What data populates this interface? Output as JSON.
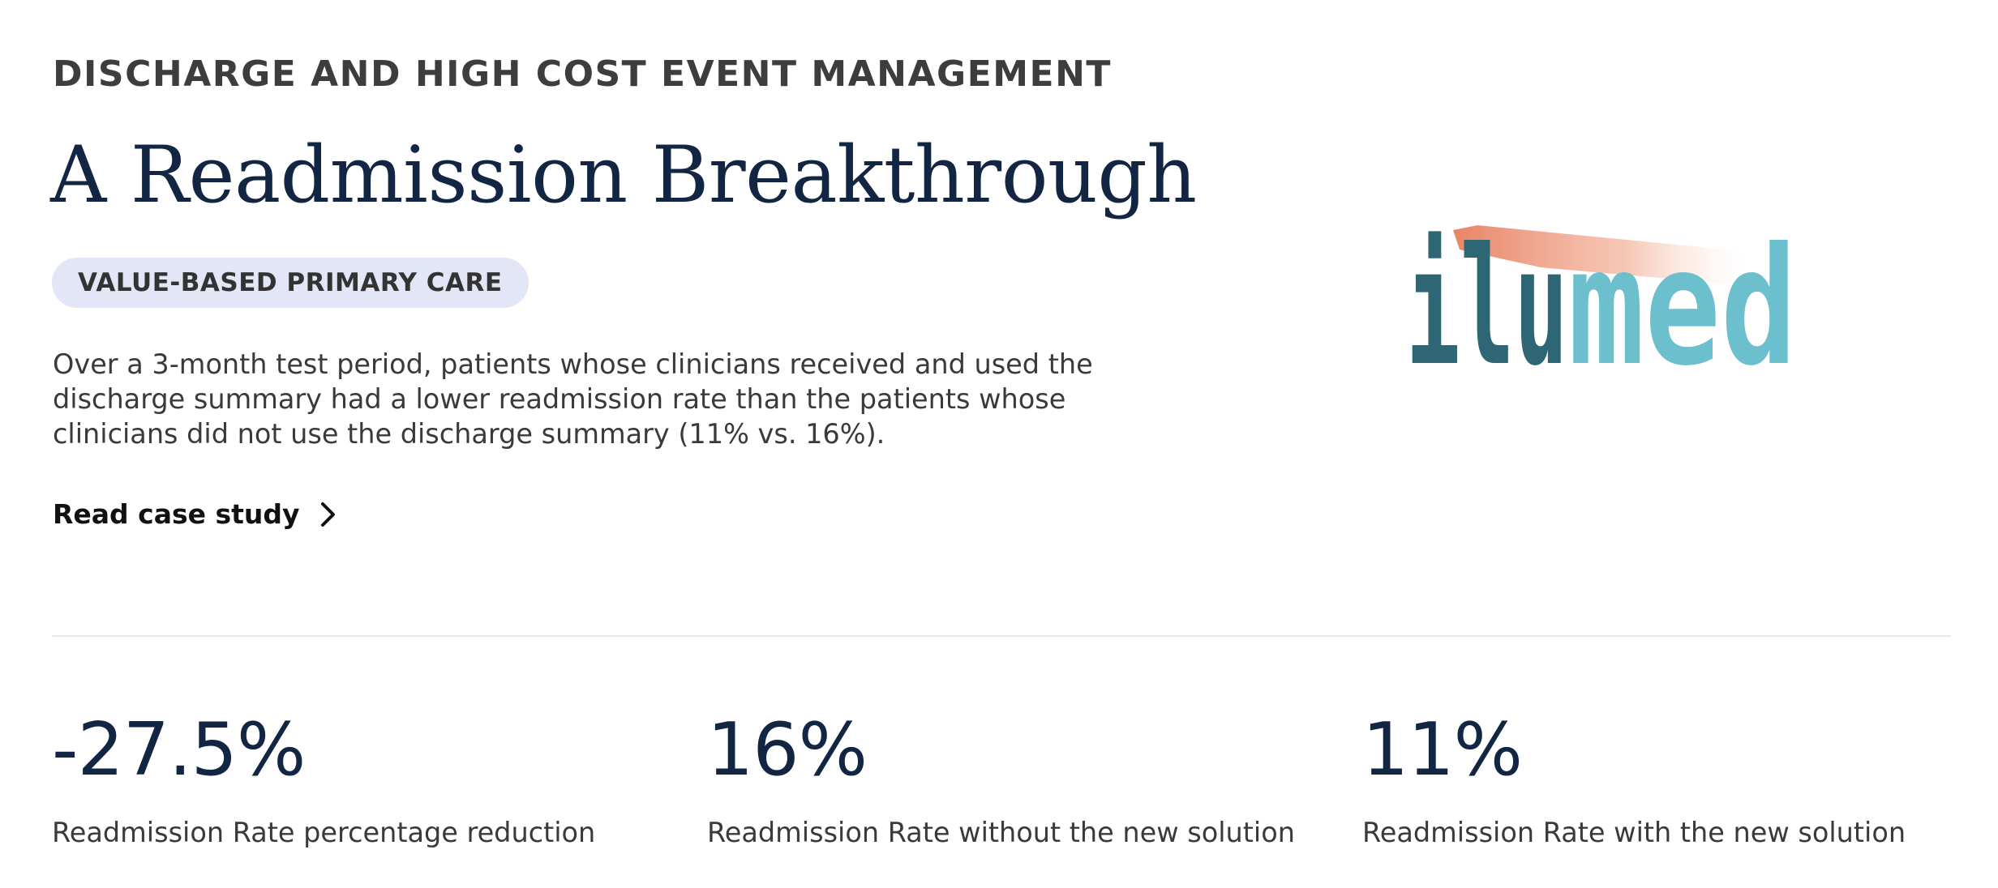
{
  "header": {
    "eyebrow": "DISCHARGE AND HIGH COST EVENT MANAGEMENT",
    "title": "A Readmission Breakthrough",
    "tag": "VALUE-BASED PRIMARY CARE"
  },
  "description": "Over a 3-month test period, patients whose clinicians received and used the discharge summary had a lower readmission rate than the patients whose clinicians did not use the discharge summary (11% vs. 16%).",
  "cta": {
    "label": "Read case study",
    "icon": "chevron-right-icon"
  },
  "logo": {
    "text_dark": "ilu",
    "text_light": "med",
    "colors": {
      "dark": "#2f6675",
      "light": "#6cbfcc",
      "beam": "#e98466"
    }
  },
  "stats": [
    {
      "value": "-27.5%",
      "label": "Readmission Rate percentage reduction"
    },
    {
      "value": "16%",
      "label": "Readmission Rate without the new solution"
    },
    {
      "value": "11%",
      "label": "Readmission Rate with the new solution"
    }
  ],
  "colors": {
    "title": "#122644",
    "pill_bg": "#e2e6f6",
    "text": "#3a3a3a"
  }
}
